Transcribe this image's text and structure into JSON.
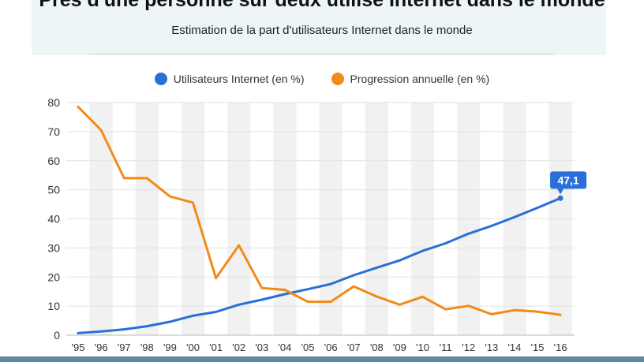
{
  "header": {
    "title": "Près d'une personne sur deux utilise Internet dans le monde",
    "subtitle": "Estimation de la part d'utilisateurs Internet dans le monde"
  },
  "colors": {
    "blue": "#2a6fd8",
    "orange": "#f28a18",
    "band": "#f1f1f1",
    "callout": "#2a6fd8"
  },
  "chart_data": {
    "type": "line",
    "title": "Près d'une personne sur deux utilise Internet dans le monde",
    "subtitle": "Estimation de la part d'utilisateurs Internet dans le monde",
    "categories": [
      "'95",
      "'96",
      "'97",
      "'98",
      "'99",
      "'00",
      "'01",
      "'02",
      "'03",
      "'04",
      "'05",
      "'06",
      "'07",
      "'08",
      "'09",
      "'10",
      "'11",
      "'12",
      "'13",
      "'14",
      "'15",
      "'16"
    ],
    "y_ticks": [
      "0",
      "10",
      "20",
      "30",
      "40",
      "50",
      "60",
      "70",
      "80"
    ],
    "ylim": [
      0,
      80
    ],
    "legend_position": "top-center",
    "series": [
      {
        "name": "Utilisateurs Internet (en %)",
        "color": "#2a6fd8",
        "values": [
          0.7,
          1.3,
          2.0,
          3.1,
          4.6,
          6.7,
          8.0,
          10.5,
          12.2,
          14.1,
          15.8,
          17.6,
          20.6,
          23.2,
          25.7,
          29.0,
          31.6,
          34.9,
          37.6,
          40.6,
          43.8,
          47.1
        ]
      },
      {
        "name": "Progression annuelle (en %)",
        "color": "#f28a18",
        "values": [
          78.5,
          70.5,
          54.0,
          54.0,
          47.7,
          45.6,
          19.6,
          30.9,
          16.2,
          15.6,
          11.5,
          11.5,
          16.8,
          13.3,
          10.5,
          13.2,
          8.9,
          10.1,
          7.2,
          8.6,
          8.1,
          7.0
        ]
      }
    ],
    "annotation": {
      "series": 0,
      "index": 21,
      "label": "47,1"
    }
  }
}
